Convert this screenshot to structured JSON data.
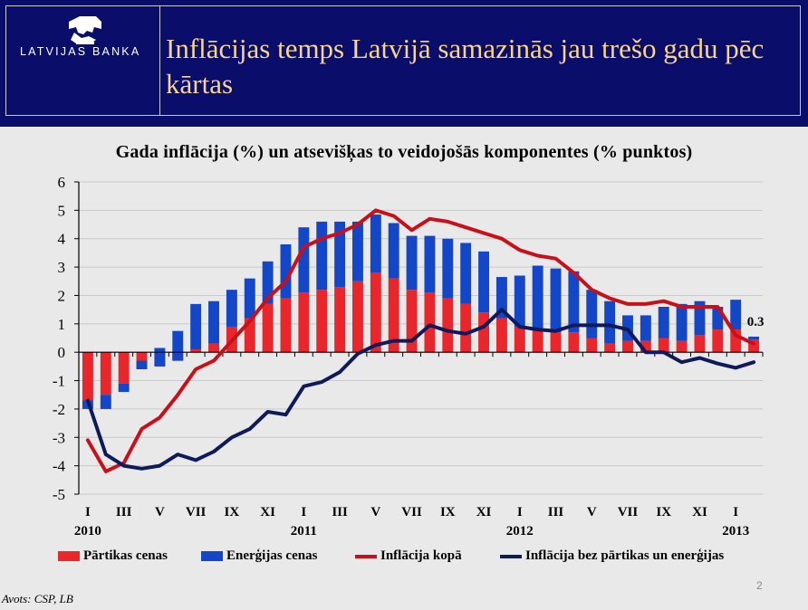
{
  "header": {
    "logo_text": "LATVIJAS BANKA",
    "title": "Inflācijas temps Latvijā samazinās jau trešo gadu pēc kārtas",
    "background_color": "#0a0d6a",
    "title_color": "#f7d590"
  },
  "legend": {
    "food": "Pārtikas cenas",
    "energy": "Enerģijas cenas",
    "total": "Inflācija kopā",
    "core": "Inflācija bez pārtikas un enerģijas"
  },
  "source": "Avots: CSP, LB",
  "page_number": "2",
  "chart_data": {
    "type": "bar",
    "title": "Gada inflācija (%) un atsevišķas to veidojošās komponentes (% punktos)",
    "xlabel": "",
    "ylabel": "",
    "ylim": [
      -5,
      6
    ],
    "yticks": [
      "-5",
      "-4",
      "-3",
      "-2",
      "-1",
      "0",
      "1",
      "2",
      "3",
      "4",
      "5",
      "6"
    ],
    "grid": true,
    "categories": [
      "2010-01",
      "2010-02",
      "2010-03",
      "2010-04",
      "2010-05",
      "2010-06",
      "2010-07",
      "2010-08",
      "2010-09",
      "2010-10",
      "2010-11",
      "2010-12",
      "2011-01",
      "2011-02",
      "2011-03",
      "2011-04",
      "2011-05",
      "2011-06",
      "2011-07",
      "2011-08",
      "2011-09",
      "2011-10",
      "2011-11",
      "2011-12",
      "2012-01",
      "2012-02",
      "2012-03",
      "2012-04",
      "2012-05",
      "2012-06",
      "2012-07",
      "2012-08",
      "2012-09",
      "2012-10",
      "2012-11",
      "2012-12",
      "2013-01",
      "2013-02"
    ],
    "x_tick_labels": [
      {
        "index": 0,
        "label": "I"
      },
      {
        "index": 2,
        "label": "III"
      },
      {
        "index": 4,
        "label": "V"
      },
      {
        "index": 6,
        "label": "VII"
      },
      {
        "index": 8,
        "label": "IX"
      },
      {
        "index": 10,
        "label": "XI"
      },
      {
        "index": 12,
        "label": "I"
      },
      {
        "index": 14,
        "label": "III"
      },
      {
        "index": 16,
        "label": "V"
      },
      {
        "index": 18,
        "label": "VII"
      },
      {
        "index": 20,
        "label": "IX"
      },
      {
        "index": 22,
        "label": "XI"
      },
      {
        "index": 24,
        "label": "I"
      },
      {
        "index": 26,
        "label": "III"
      },
      {
        "index": 28,
        "label": "V"
      },
      {
        "index": 30,
        "label": "VII"
      },
      {
        "index": 32,
        "label": "IX"
      },
      {
        "index": 34,
        "label": "XI"
      },
      {
        "index": 36,
        "label": "I"
      }
    ],
    "year_labels": [
      {
        "index": 0,
        "label": "2010"
      },
      {
        "index": 12,
        "label": "2011"
      },
      {
        "index": 24,
        "label": "2012"
      },
      {
        "index": 36,
        "label": "2013"
      }
    ],
    "series": [
      {
        "name": "Pārtikas cenas",
        "kind": "bar",
        "color": "#e8262b",
        "values": [
          -1.7,
          -1.5,
          -1.1,
          -0.6,
          -0.5,
          -0.3,
          0.1,
          0.3,
          0.9,
          1.2,
          1.7,
          1.9,
          2.1,
          2.2,
          2.3,
          2.5,
          2.8,
          2.6,
          2.2,
          2.1,
          1.9,
          1.7,
          1.4,
          1.2,
          0.9,
          0.8,
          0.7,
          0.7,
          0.5,
          0.3,
          0.4,
          0.4,
          0.5,
          0.4,
          0.6,
          0.8,
          0.8,
          0.45
        ]
      },
      {
        "name": "Enerģijas cenas",
        "kind": "bar",
        "color": "#1446c8",
        "values": [
          -0.3,
          -0.5,
          -0.3,
          0.3,
          0.65,
          1.05,
          1.6,
          1.5,
          1.3,
          1.4,
          1.5,
          1.9,
          2.3,
          2.4,
          2.3,
          2.1,
          2.05,
          1.95,
          1.9,
          2.0,
          2.1,
          2.15,
          2.15,
          1.45,
          1.8,
          2.25,
          2.25,
          2.15,
          1.7,
          1.5,
          0.9,
          0.9,
          1.1,
          1.3,
          1.2,
          0.8,
          1.05,
          0.1
        ]
      },
      {
        "name": "Inflācija kopā",
        "kind": "line",
        "color": "#c8101a",
        "values": [
          -3.1,
          -4.2,
          -3.9,
          -2.7,
          -2.3,
          -1.5,
          -0.6,
          -0.3,
          0.4,
          1.1,
          1.9,
          2.5,
          3.7,
          4.0,
          4.2,
          4.5,
          5.0,
          4.8,
          4.3,
          4.7,
          4.6,
          4.4,
          4.2,
          4.0,
          3.6,
          3.4,
          3.3,
          2.8,
          2.2,
          1.9,
          1.7,
          1.7,
          1.8,
          1.6,
          1.6,
          1.6,
          0.6,
          0.3
        ]
      },
      {
        "name": "Inflācija bez pārtikas un enerģijas",
        "kind": "line",
        "color": "#101a5a",
        "values": [
          -1.7,
          -3.6,
          -4.0,
          -4.1,
          -4.0,
          -3.6,
          -3.8,
          -3.5,
          -3.0,
          -2.7,
          -2.1,
          -2.2,
          -1.2,
          -1.05,
          -0.7,
          -0.05,
          0.25,
          0.4,
          0.4,
          0.95,
          0.75,
          0.65,
          0.9,
          1.5,
          0.9,
          0.8,
          0.75,
          0.95,
          0.95,
          0.95,
          0.8,
          0.0,
          0.0,
          -0.35,
          -0.2,
          -0.4,
          -0.55,
          -0.35
        ]
      }
    ],
    "annotations": [
      {
        "index": 37,
        "label": "0.3"
      }
    ]
  }
}
